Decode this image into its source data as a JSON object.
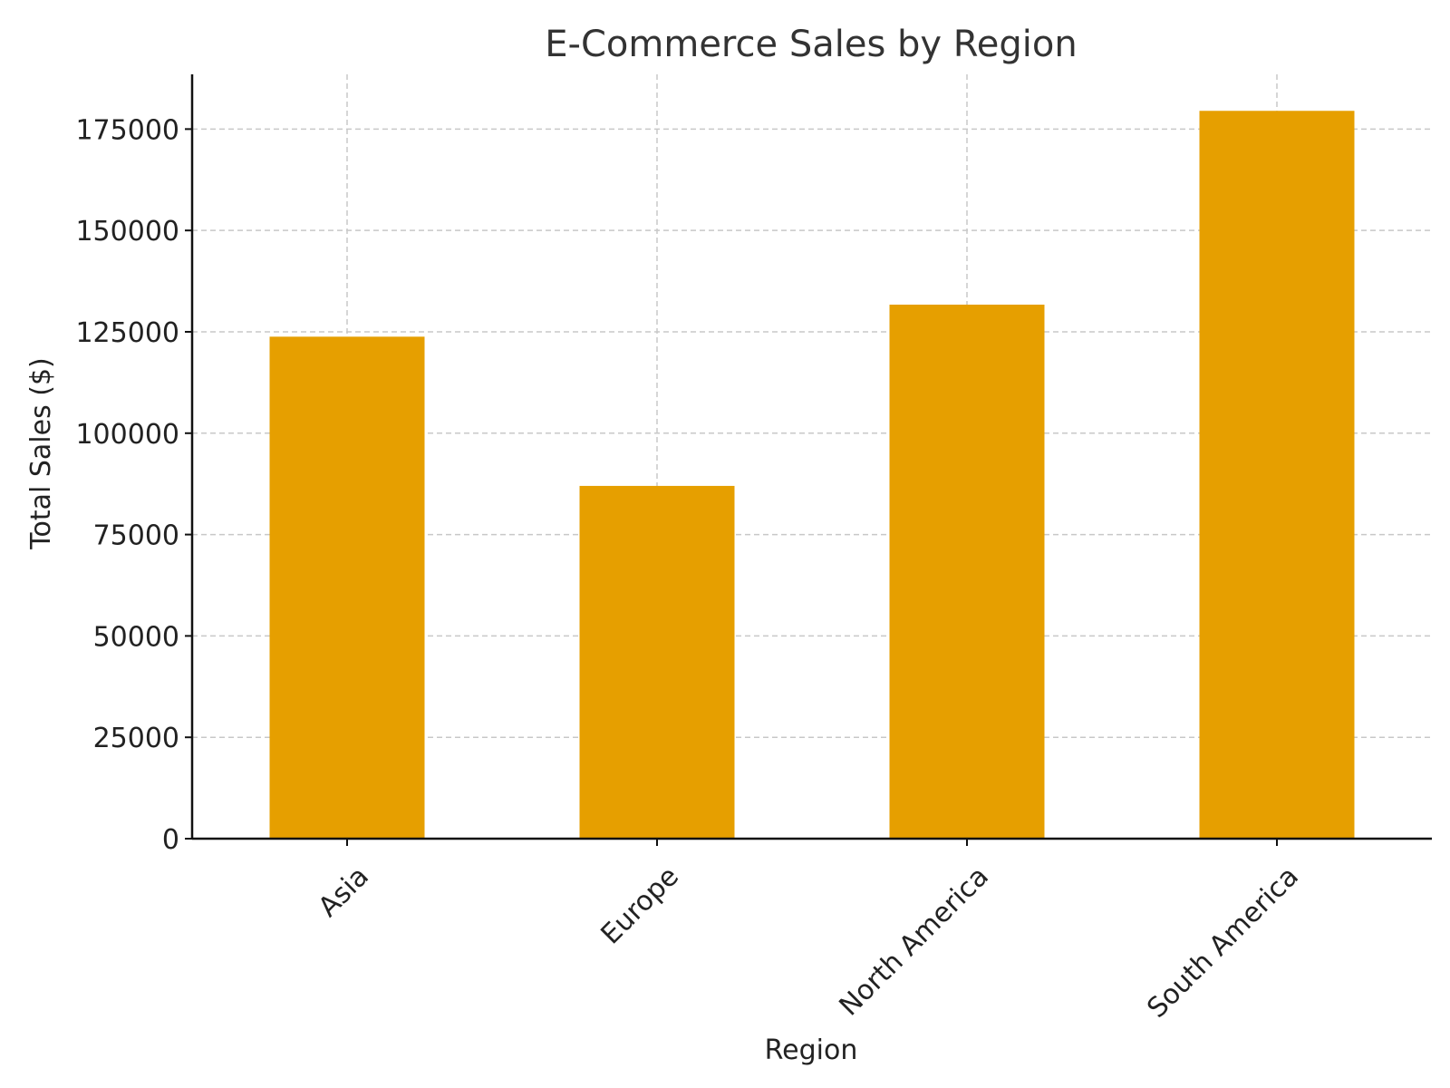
{
  "chart_data": {
    "type": "bar",
    "title": "E-Commerce Sales by Region",
    "xlabel": "Region",
    "ylabel": "Total Sales ($)",
    "categories": [
      "Asia",
      "Europe",
      "North America",
      "South America"
    ],
    "values": [
      123800,
      87000,
      131700,
      179500
    ],
    "ylim": [
      0,
      188500
    ],
    "yticks": [
      0,
      25000,
      50000,
      75000,
      100000,
      125000,
      150000,
      175000
    ],
    "ytick_labels": [
      "0",
      "25000",
      "50000",
      "75000",
      "100000",
      "125000",
      "150000",
      "175000"
    ],
    "grid": true,
    "colors": {
      "bar": "#E69F00",
      "grid": "#c8c8c8",
      "axis": "#111111",
      "text": "#222222",
      "title": "#333333"
    }
  }
}
